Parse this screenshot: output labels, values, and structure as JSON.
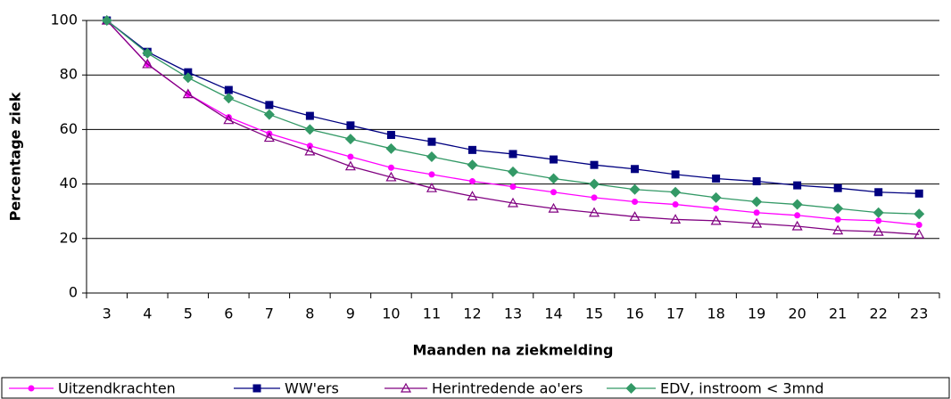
{
  "chart_data": {
    "type": "line",
    "x_label": "Maanden na ziekmelding",
    "y_label": "Percentage ziek",
    "categories": [
      "3",
      "4",
      "5",
      "6",
      "7",
      "8",
      "9",
      "10",
      "11",
      "12",
      "13",
      "14",
      "15",
      "16",
      "17",
      "18",
      "19",
      "20",
      "21",
      "22",
      "23"
    ],
    "ylim": [
      0,
      100
    ],
    "yticks": [
      0,
      20,
      40,
      60,
      80,
      100
    ],
    "grid": true,
    "legend": "bottom",
    "series": [
      {
        "name": "Uitzendkrachten",
        "color": "#ff00ff",
        "marker": "circle",
        "values": [
          100,
          84,
          73,
          64.5,
          58.5,
          54,
          50,
          46,
          43.5,
          41,
          39,
          37,
          35,
          33.5,
          32.5,
          31,
          29.5,
          28.5,
          27,
          26.5,
          25
        ]
      },
      {
        "name": "WW'ers",
        "color": "#000080",
        "marker": "square",
        "values": [
          100,
          88.5,
          81,
          74.5,
          69,
          65,
          61.5,
          58,
          55.5,
          52.5,
          51,
          49,
          47,
          45.5,
          43.5,
          42,
          41,
          39.5,
          38.5,
          37,
          36.5
        ]
      },
      {
        "name": "Herintredende ao'ers",
        "color": "#800080",
        "marker": "triangle",
        "values": [
          100,
          84,
          73,
          63.5,
          57,
          52,
          46.5,
          42.5,
          38.5,
          35.5,
          33,
          31,
          29.5,
          28,
          27,
          26.5,
          25.5,
          24.5,
          23,
          22.5,
          21.5
        ]
      },
      {
        "name": "EDV, instroom < 3mnd",
        "color": "#339966",
        "marker": "diamond",
        "values": [
          100,
          88,
          79,
          71.5,
          65.5,
          60,
          56.5,
          53,
          50,
          47,
          44.5,
          42,
          40,
          38,
          37,
          35,
          33.5,
          32.5,
          31,
          29.5,
          29
        ]
      }
    ]
  }
}
